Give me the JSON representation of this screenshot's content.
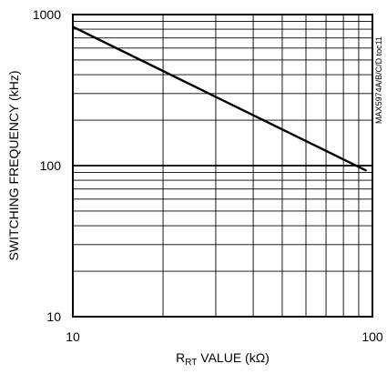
{
  "chart_data": {
    "type": "line",
    "title": "",
    "xlabel": {
      "main": "R",
      "subscript": "RT",
      "rest": " VALUE (kΩ)"
    },
    "ylabel": "SWITCHING FREQUENCY (kHz)",
    "annotation": "MAX5974A/B/C/D toc11",
    "x_scale": "log",
    "y_scale": "log",
    "xlim": [
      10,
      100
    ],
    "ylim": [
      10,
      1000
    ],
    "x_ticks": [
      {
        "value": 10,
        "label": "10"
      },
      {
        "value": 100,
        "label": "100"
      }
    ],
    "y_ticks": [
      {
        "value": 10,
        "label": "10"
      },
      {
        "value": 100,
        "label": "100"
      },
      {
        "value": 1000,
        "label": "1000"
      }
    ],
    "grid": true,
    "series": [
      {
        "color": "#000000",
        "x": [
          10,
          95
        ],
        "y": [
          830,
          93
        ]
      }
    ]
  }
}
